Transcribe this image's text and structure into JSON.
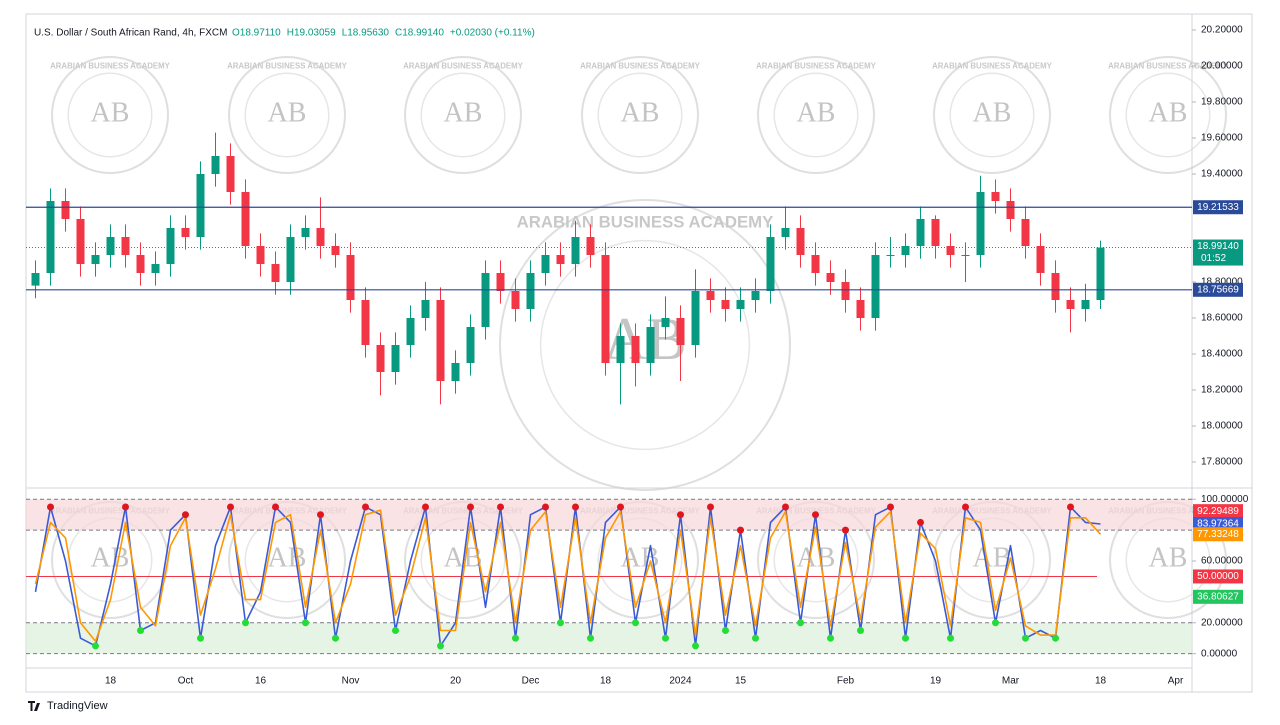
{
  "header": {
    "title": "U.S. Dollar / South African Rand, 4h, FXCM",
    "ohlc": [
      "O18.97110",
      "H19.03059",
      "L18.95630",
      "C18.99140",
      "+0.02030 (+0.11%)"
    ]
  },
  "watermark": {
    "initials": "AB",
    "name": "ARABIAN BUSINESS ACADEMY"
  },
  "footer": {
    "brand": "TradingView"
  },
  "chart_data": [
    {
      "type": "candlestick",
      "up_color": "#089981",
      "down_color": "#f23645",
      "categories": [
        null,
        null,
        null,
        null,
        null,
        "18",
        null,
        null,
        null,
        null,
        "Oct",
        null,
        null,
        null,
        null,
        "16",
        null,
        null,
        null,
        null,
        null,
        "Nov",
        null,
        null,
        null,
        null,
        null,
        null,
        "20",
        null,
        null,
        null,
        null,
        "Dec",
        null,
        null,
        null,
        null,
        "18",
        null,
        null,
        null,
        null,
        "2024",
        null,
        null,
        null,
        "15",
        null,
        null,
        null,
        null,
        null,
        null,
        "Feb",
        null,
        null,
        null,
        null,
        null,
        "19",
        null,
        null,
        null,
        null,
        "Mar",
        null,
        null,
        null,
        null,
        null,
        "18",
        null,
        null,
        null,
        null,
        "Apr"
      ],
      "open": [
        18.78,
        18.85,
        19.25,
        19.15,
        18.9,
        18.95,
        19.05,
        18.95,
        18.85,
        18.9,
        19.1,
        19.05,
        19.4,
        19.5,
        19.3,
        19.0,
        18.9,
        18.8,
        19.05,
        19.1,
        19.0,
        18.95,
        18.7,
        18.45,
        18.3,
        18.45,
        18.6,
        18.7,
        18.25,
        18.35,
        18.55,
        18.85,
        18.75,
        18.65,
        18.85,
        18.95,
        18.9,
        19.05,
        18.95,
        18.35,
        18.5,
        18.35,
        18.55,
        18.6,
        18.45,
        18.75,
        18.7,
        18.65,
        18.7,
        18.75,
        19.05,
        19.1,
        18.95,
        18.85,
        18.8,
        18.7,
        18.6,
        18.95,
        18.95,
        19.0,
        19.15,
        19.0,
        18.95,
        18.95,
        19.3,
        19.25,
        19.15,
        19.0,
        18.85,
        18.7,
        18.65,
        18.7,
        null,
        null,
        null,
        null,
        null
      ],
      "high": [
        18.92,
        19.32,
        19.32,
        19.22,
        19.02,
        19.12,
        19.12,
        19.02,
        18.97,
        19.17,
        19.17,
        19.47,
        19.63,
        19.57,
        19.37,
        19.07,
        18.97,
        19.12,
        19.17,
        19.27,
        19.07,
        19.02,
        18.77,
        18.52,
        18.52,
        18.67,
        18.8,
        18.77,
        18.42,
        18.62,
        18.92,
        18.92,
        18.82,
        18.92,
        19.02,
        19.02,
        19.14,
        19.12,
        19.02,
        18.57,
        18.57,
        18.62,
        18.72,
        18.67,
        18.87,
        18.82,
        18.77,
        18.77,
        18.82,
        19.12,
        19.22,
        19.17,
        19.02,
        18.92,
        18.87,
        18.77,
        19.02,
        19.05,
        19.07,
        19.22,
        19.17,
        19.07,
        19.02,
        19.39,
        19.37,
        19.32,
        19.22,
        19.07,
        18.92,
        18.77,
        18.79,
        19.03,
        null,
        null,
        null,
        null,
        null
      ],
      "low": [
        18.71,
        18.78,
        19.08,
        18.83,
        18.83,
        18.88,
        18.88,
        18.78,
        18.78,
        18.83,
        18.98,
        18.98,
        19.33,
        19.23,
        18.93,
        18.83,
        18.73,
        18.73,
        18.98,
        18.93,
        18.88,
        18.63,
        18.38,
        18.17,
        18.23,
        18.38,
        18.53,
        18.12,
        18.18,
        18.28,
        18.48,
        18.68,
        18.58,
        18.58,
        18.78,
        18.83,
        18.83,
        18.88,
        18.28,
        18.12,
        18.22,
        18.28,
        18.48,
        18.25,
        18.38,
        18.63,
        18.58,
        18.58,
        18.63,
        18.68,
        18.98,
        18.88,
        18.78,
        18.73,
        18.63,
        18.53,
        18.53,
        18.88,
        18.88,
        18.93,
        18.93,
        18.88,
        18.8,
        18.88,
        19.18,
        19.08,
        18.93,
        18.78,
        18.63,
        18.52,
        18.58,
        18.65,
        null,
        null,
        null,
        null,
        null
      ],
      "close": [
        18.85,
        19.25,
        19.15,
        18.9,
        18.95,
        19.05,
        18.95,
        18.85,
        18.9,
        19.1,
        19.05,
        19.4,
        19.5,
        19.3,
        19.0,
        18.9,
        18.8,
        19.05,
        19.1,
        19.0,
        18.95,
        18.7,
        18.45,
        18.3,
        18.45,
        18.6,
        18.7,
        18.25,
        18.35,
        18.55,
        18.85,
        18.75,
        18.65,
        18.85,
        18.95,
        18.9,
        19.05,
        18.95,
        18.35,
        18.5,
        18.35,
        18.55,
        18.6,
        18.45,
        18.75,
        18.7,
        18.65,
        18.7,
        18.75,
        19.05,
        19.1,
        18.95,
        18.85,
        18.8,
        18.7,
        18.6,
        18.95,
        18.95,
        19.0,
        19.15,
        19.0,
        18.95,
        18.95,
        19.3,
        19.25,
        19.15,
        19.0,
        18.85,
        18.7,
        18.65,
        18.7,
        18.9914,
        null,
        null,
        null,
        null,
        null
      ],
      "ylim": [
        17.7,
        20.3
      ],
      "yticks": [
        {
          "value": 20.2,
          "label": "20.20000"
        },
        {
          "value": 20.0,
          "label": "20.00000"
        },
        {
          "value": 19.8,
          "label": "19.80000"
        },
        {
          "value": 19.6,
          "label": "19.60000"
        },
        {
          "value": 19.4,
          "label": "19.40000"
        },
        {
          "value": 18.8,
          "label": "18.80000"
        },
        {
          "value": 18.6,
          "label": "18.60000"
        },
        {
          "value": 18.4,
          "label": "18.40000"
        },
        {
          "value": 18.2,
          "label": "18.20000"
        },
        {
          "value": 18.0,
          "label": "18.00000"
        },
        {
          "value": 17.8,
          "label": "17.80000"
        }
      ],
      "price_lines": [
        {
          "value": 19.21533,
          "label": "19.21533",
          "color": "#2a4a9a"
        },
        {
          "value": 18.75669,
          "label": "18.75669",
          "color": "#2a4a9a"
        }
      ],
      "last_price": {
        "value": 18.9914,
        "label": "18.99140",
        "countdown": "01:52",
        "color": "#089981"
      }
    },
    {
      "type": "line",
      "series": [
        {
          "color": "#3b5bd6",
          "values": [
            40,
            95,
            60,
            10,
            5,
            45,
            95,
            15,
            20,
            80,
            90,
            10,
            70,
            95,
            20,
            40,
            95,
            85,
            20,
            90,
            10,
            60,
            95,
            90,
            15,
            60,
            95,
            5,
            20,
            95,
            30,
            95,
            10,
            90,
            95,
            20,
            95,
            10,
            85,
            95,
            20,
            70,
            10,
            90,
            5,
            95,
            15,
            80,
            10,
            85,
            95,
            20,
            90,
            10,
            80,
            15,
            90,
            95,
            10,
            85,
            60,
            10,
            95,
            80,
            20,
            70,
            10,
            15,
            10,
            95,
            85,
            83.97364,
            null,
            null,
            null,
            null,
            null
          ]
        },
        {
          "color": "#ff9800",
          "values": [
            45,
            85,
            75,
            20,
            8,
            35,
            85,
            30,
            18,
            70,
            88,
            25,
            55,
            90,
            35,
            35,
            85,
            90,
            30,
            80,
            20,
            45,
            90,
            93,
            25,
            50,
            88,
            15,
            15,
            85,
            40,
            85,
            20,
            80,
            92,
            30,
            88,
            20,
            75,
            92,
            30,
            60,
            20,
            80,
            12,
            88,
            25,
            70,
            18,
            75,
            92,
            30,
            82,
            18,
            72,
            22,
            82,
            92,
            20,
            78,
            68,
            18,
            88,
            85,
            28,
            62,
            18,
            12,
            12,
            88,
            88,
            77.33248,
            null,
            null,
            null,
            null,
            null
          ]
        }
      ],
      "ylim": [
        -8,
        106
      ],
      "yticks": [
        {
          "value": 100,
          "label": "100.00000"
        },
        {
          "value": 60,
          "label": "60.00000"
        },
        {
          "value": 20,
          "label": "20.00000"
        },
        {
          "value": 0,
          "label": "0.00000"
        }
      ],
      "bands": [
        {
          "range": [
            80,
            100
          ],
          "color": "#f8d7da"
        },
        {
          "range": [
            0,
            20
          ],
          "color": "#dcefdc"
        }
      ],
      "levels": [
        {
          "value": 92.29489,
          "label": "92.29489",
          "color": "#f23645"
        },
        {
          "value": 83.97364,
          "label": "83.97364",
          "color": "#3b5bd6"
        },
        {
          "value": 77.33248,
          "label": "77.33248",
          "color": "#ff9800"
        },
        {
          "value": 50,
          "label": "50.00000",
          "color": "#f23645",
          "line": true
        },
        {
          "value": 36.80627,
          "label": "36.80627",
          "color": "#22c55e"
        }
      ]
    }
  ]
}
